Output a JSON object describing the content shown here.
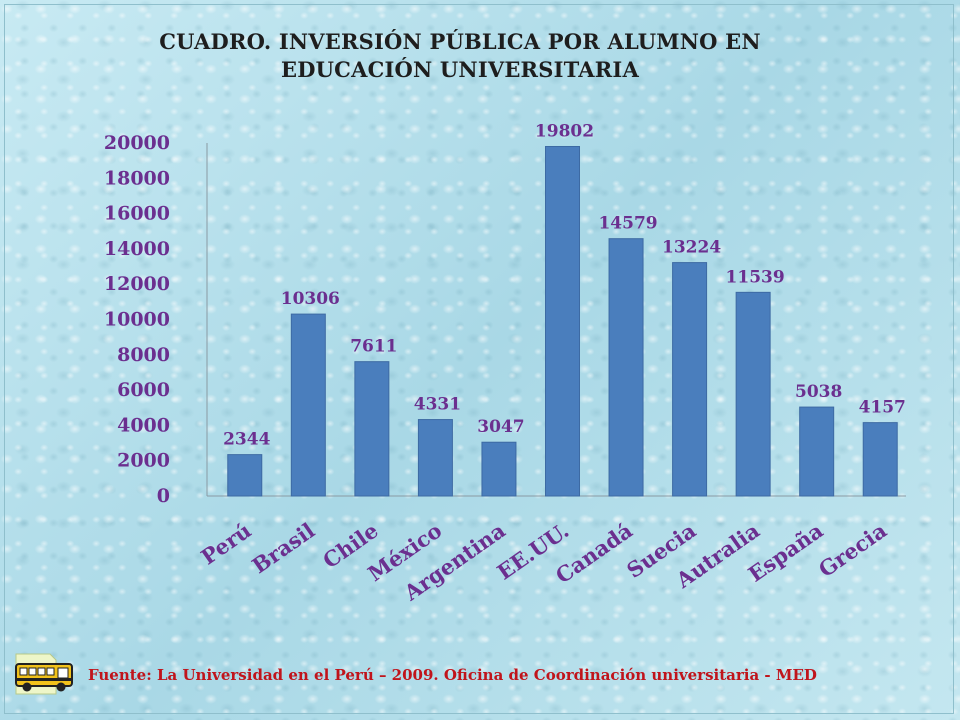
{
  "title_lines": [
    "CUADRO. INVERSIÓN PÚBLICA POR ALUMNO EN",
    "EDUCACIÓN UNIVERSITARIA"
  ],
  "source": "Fuente: La Universidad en el Perú – 2009. Oficina de Coordinación universitaria - MED",
  "colors": {
    "bar": "#4a7ebd",
    "labels": "#6b2f8f",
    "source": "#c0141b"
  },
  "icons": [
    "bus-icon"
  ],
  "chart_data": {
    "type": "bar",
    "title": "CUADRO. INVERSIÓN PÚBLICA POR ALUMNO EN EDUCACIÓN UNIVERSITARIA",
    "xlabel": "",
    "ylabel": "",
    "categories": [
      "Perú",
      "Brasil",
      "Chile",
      "México",
      "Argentina",
      "EE.UU.",
      "Canadá",
      "Suecia",
      "Autralia",
      "España",
      "Grecia"
    ],
    "values": [
      2344,
      10306,
      7611,
      4331,
      3047,
      19802,
      14579,
      13224,
      11539,
      5038,
      4157
    ],
    "ylim": [
      0,
      20000
    ],
    "yticks": [
      0,
      2000,
      4000,
      6000,
      8000,
      10000,
      12000,
      14000,
      16000,
      18000,
      20000
    ],
    "grid": false,
    "legend": "none",
    "data_labels": true
  }
}
